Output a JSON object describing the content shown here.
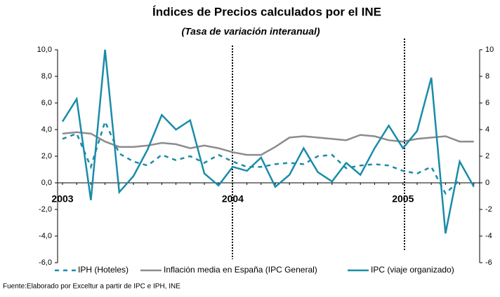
{
  "chart_data": {
    "type": "line",
    "title": "Índices de Precios calculados por el INE",
    "subtitle": "(Tasa de variación interanual)",
    "source": "Fuente:Elaborado por Exceltur a partir de  IPC e IPH,  INE",
    "categories": [
      "2003",
      null,
      null,
      null,
      null,
      null,
      null,
      null,
      null,
      null,
      null,
      null,
      "2004",
      null,
      null,
      null,
      null,
      null,
      null,
      null,
      null,
      null,
      null,
      null,
      "2005",
      null,
      null,
      null,
      null,
      null
    ],
    "series": [
      {
        "name": "IPH (Hoteles)",
        "color": "#1a8ca8",
        "dash": true,
        "values": [
          3.3,
          3.7,
          1.2,
          4.6,
          2.2,
          1.6,
          1.3,
          2.1,
          1.7,
          2.0,
          1.5,
          2.1,
          1.6,
          1.2,
          1.2,
          1.4,
          1.5,
          1.4,
          2.0,
          2.1,
          1.1,
          1.3,
          1.4,
          1.3,
          0.9,
          0.7,
          1.2,
          -0.8,
          0.2,
          null
        ]
      },
      {
        "name": "Inflación media en España (IPC General)",
        "color": "#8c8c8c",
        "values": [
          3.7,
          3.8,
          3.7,
          3.1,
          2.7,
          2.7,
          2.8,
          3.0,
          2.9,
          2.6,
          2.8,
          2.6,
          2.3,
          2.1,
          2.1,
          2.7,
          3.4,
          3.5,
          3.4,
          3.3,
          3.2,
          3.6,
          3.5,
          3.2,
          3.1,
          3.3,
          3.4,
          3.5,
          3.1,
          3.1
        ]
      },
      {
        "name": "IPC (viaje organizado)",
        "color": "#1a8ca8",
        "values": [
          4.6,
          6.3,
          -1.3,
          10.0,
          -0.7,
          0.5,
          2.5,
          5.1,
          4.0,
          4.7,
          0.7,
          -0.2,
          1.2,
          0.9,
          1.9,
          -0.3,
          0.6,
          2.6,
          0.8,
          0.1,
          1.5,
          0.6,
          2.6,
          4.3,
          2.6,
          3.9,
          7.9,
          -3.8,
          1.6,
          -0.3
        ]
      }
    ],
    "ylim": [
      -6,
      10
    ],
    "yticks": [
      {
        "value": -6,
        "label": "-6,0"
      },
      {
        "value": -4,
        "label": "-4,0"
      },
      {
        "value": -2,
        "label": "-2,0"
      },
      {
        "value": 0,
        "label": "0,0"
      },
      {
        "value": 2,
        "label": "2,0"
      },
      {
        "value": 4,
        "label": "4,0"
      },
      {
        "value": 6,
        "label": "6,0"
      },
      {
        "value": 8,
        "label": "8,0"
      },
      {
        "value": 10,
        "label": "10,0"
      }
    ],
    "y2lim": [
      -6,
      10
    ],
    "y2ticks": [
      -6,
      -4,
      -2,
      0,
      2,
      4,
      6,
      8,
      10
    ],
    "grid": false
  }
}
